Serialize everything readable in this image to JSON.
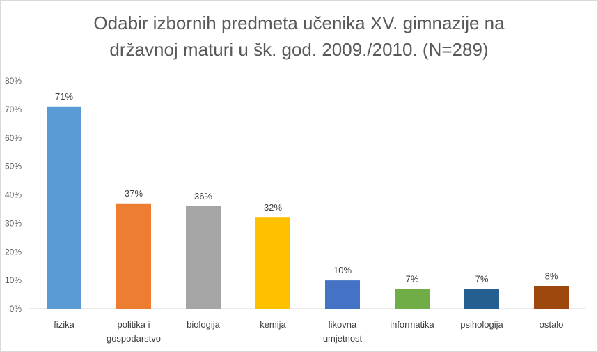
{
  "chart_data": {
    "type": "bar",
    "title_lines": [
      "Odabir izbornih predmeta učenika XV. gimnazije na",
      "državnoj maturi u šk. god. 2009./2010. (N=289)"
    ],
    "categories": [
      [
        "fizika"
      ],
      [
        "politika i",
        "gospodarstvo"
      ],
      [
        "biologija"
      ],
      [
        "kemija"
      ],
      [
        "likovna",
        "umjetnost"
      ],
      [
        "informatika"
      ],
      [
        "psihologija"
      ],
      [
        "ostalo"
      ]
    ],
    "values": [
      71,
      37,
      36,
      32,
      10,
      7,
      7,
      8
    ],
    "data_labels": [
      "71%",
      "37%",
      "36%",
      "32%",
      "10%",
      "7%",
      "7%",
      "8%"
    ],
    "colors": [
      "#5b9bd5",
      "#ed7d31",
      "#a5a5a5",
      "#ffc000",
      "#4472c4",
      "#70ad47",
      "#255e91",
      "#9e480e"
    ],
    "ylim": [
      0,
      80
    ],
    "yticks": [
      0,
      10,
      20,
      30,
      40,
      50,
      60,
      70,
      80
    ],
    "ytick_labels": [
      "0%",
      "10%",
      "20%",
      "30%",
      "40%",
      "50%",
      "60%",
      "70%",
      "80%"
    ],
    "grid": false,
    "legend": "none",
    "xlabel": "",
    "ylabel": ""
  }
}
